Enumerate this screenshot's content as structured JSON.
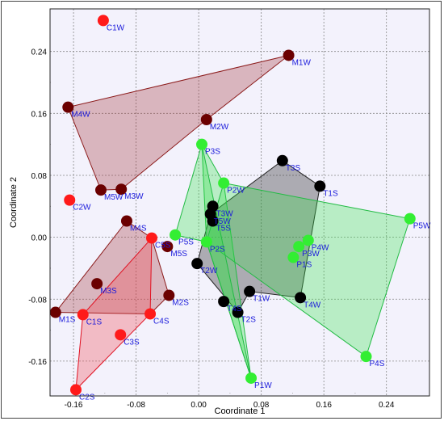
{
  "chart_data": {
    "type": "scatter",
    "title": "",
    "xlabel": "Coordinate 1",
    "ylabel": "Coordinate 2",
    "xlim": [
      -0.19,
      0.295
    ],
    "ylim": [
      -0.205,
      0.295
    ],
    "xticks": [
      -0.16,
      -0.08,
      0.0,
      0.08,
      0.16,
      0.24
    ],
    "xtick_labels": [
      "-0.16",
      "-0.08",
      "0.00",
      "0.08",
      "0.16",
      "0.24"
    ],
    "yticks": [
      -0.16,
      -0.08,
      0.0,
      0.08,
      0.16,
      0.24
    ],
    "ytick_labels": [
      "-0.16",
      "-0.08",
      "0.00",
      "0.08",
      "0.16",
      "0.24"
    ],
    "minor_x": [
      -0.12,
      -0.04,
      0.04,
      0.12,
      0.2
    ],
    "minor_y": [
      -0.12,
      -0.04,
      0.04,
      0.12,
      0.2
    ],
    "grid": true,
    "plot_background": "#f3f2fc",
    "series": [
      {
        "color": "#6b0000",
        "fill": "rgba(160,40,45,0.30)",
        "stroke": "#8b1a1a",
        "hull": [
          "M1W",
          "M4W",
          "M5W",
          "M3W",
          "M2W"
        ],
        "points": [
          {
            "label": "M1W",
            "x": 0.115,
            "y": 0.235
          },
          {
            "label": "M2W",
            "x": 0.01,
            "y": 0.152
          },
          {
            "label": "M3W",
            "x": -0.099,
            "y": 0.062
          },
          {
            "label": "M4W",
            "x": -0.167,
            "y": 0.168
          },
          {
            "label": "M5W",
            "x": -0.125,
            "y": 0.061
          }
        ]
      },
      {
        "color": "#6b0000",
        "fill": "rgba(160,40,45,0.30)",
        "stroke": "#8b1a1a",
        "hull": [
          "M1S",
          "M4S",
          "C5S",
          "M2S",
          "C4S"
        ],
        "points": [
          {
            "label": "M1S",
            "x": -0.183,
            "y": -0.097
          },
          {
            "label": "M2S",
            "x": -0.038,
            "y": -0.075
          },
          {
            "label": "M3S",
            "x": -0.13,
            "y": -0.06
          },
          {
            "label": "M4S",
            "x": -0.092,
            "y": 0.021
          },
          {
            "label": "M5S",
            "x": -0.04,
            "y": -0.012
          }
        ]
      },
      {
        "color": "#ff1a1a",
        "fill": "rgba(240,70,80,0.32)",
        "stroke": "#e01020",
        "hull": [
          "C2S",
          "C1S",
          "C5S",
          "C4S"
        ],
        "points": [
          {
            "label": "C1W",
            "x": -0.122,
            "y": 0.28
          },
          {
            "label": "C2W",
            "x": -0.165,
            "y": 0.048
          },
          {
            "label": "C1S",
            "x": -0.148,
            "y": -0.1
          },
          {
            "label": "C2S",
            "x": -0.157,
            "y": -0.197
          },
          {
            "label": "C3S",
            "x": -0.1,
            "y": -0.126
          },
          {
            "label": "C4S",
            "x": -0.062,
            "y": -0.099
          },
          {
            "label": "C5S",
            "x": -0.06,
            "y": -0.001
          }
        ]
      },
      {
        "color": "#000000",
        "fill": "rgba(40,40,40,0.35)",
        "stroke": "#222222",
        "hull": [
          "T3S",
          "T1S",
          "T4W",
          "T1W",
          "T2S",
          "T2W",
          "T5W"
        ],
        "points": [
          {
            "label": "T1W",
            "x": 0.065,
            "y": -0.07
          },
          {
            "label": "T2W",
            "x": -0.002,
            "y": -0.034
          },
          {
            "label": "T3W",
            "x": 0.018,
            "y": 0.04
          },
          {
            "label": "T4W",
            "x": 0.13,
            "y": -0.078
          },
          {
            "label": "T5W",
            "x": 0.015,
            "y": 0.03
          },
          {
            "label": "T1S",
            "x": 0.155,
            "y": 0.066
          },
          {
            "label": "T2S",
            "x": 0.05,
            "y": -0.097
          },
          {
            "label": "T3S",
            "x": 0.107,
            "y": 0.099
          },
          {
            "label": "T4S",
            "x": 0.032,
            "y": -0.083
          },
          {
            "label": "T5S",
            "x": 0.018,
            "y": 0.021
          }
        ]
      },
      {
        "color": "#33ee33",
        "fill": "rgba(50,225,70,0.30)",
        "stroke": "#22bb44",
        "hull": [
          "P2W",
          "P1W",
          "P2S",
          "P3S"
        ],
        "points": [
          {
            "label": "P1W",
            "x": 0.067,
            "y": -0.182
          },
          {
            "label": "P2W",
            "x": 0.032,
            "y": 0.07
          },
          {
            "label": "P3W",
            "x": 0.128,
            "y": -0.012
          },
          {
            "label": "P4W",
            "x": 0.14,
            "y": -0.004
          },
          {
            "label": "P5W",
            "x": 0.27,
            "y": 0.024
          },
          {
            "label": "P1S",
            "x": 0.121,
            "y": -0.026
          },
          {
            "label": "P2S",
            "x": 0.01,
            "y": -0.006
          },
          {
            "label": "P3S",
            "x": 0.004,
            "y": 0.12
          },
          {
            "label": "P4S",
            "x": 0.214,
            "y": -0.154
          },
          {
            "label": "P5S",
            "x": -0.03,
            "y": 0.003
          }
        ]
      },
      {
        "color": "#33ee33",
        "fill": "rgba(50,225,70,0.30)",
        "stroke": "#22bb44",
        "hull": [
          "P2W",
          "P5W",
          "P4S",
          "P2S"
        ],
        "points": []
      },
      {
        "color": "#33ee33",
        "fill": "rgba(50,225,70,0.30)",
        "stroke": "#22bb44",
        "hull": [
          "P3S",
          "P5S",
          "P2S",
          "P1W"
        ],
        "points": []
      }
    ]
  }
}
